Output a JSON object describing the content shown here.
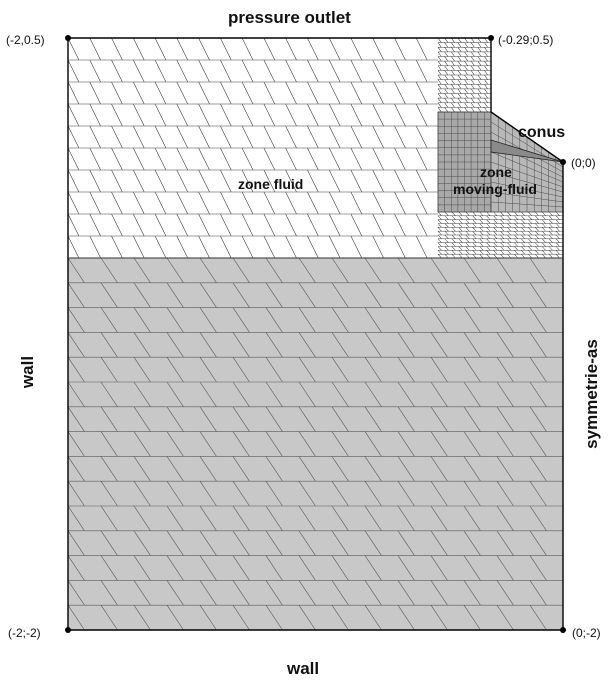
{
  "boundaries": {
    "top": "pressure outlet",
    "bottom": "wall",
    "left": "wall",
    "right": "symmetrie-as"
  },
  "zones": {
    "fluid": "zone fluid",
    "moving_fluid_line1": "zone",
    "moving_fluid_line2": "moving-fluid",
    "conus": "conus"
  },
  "corners": {
    "top_left": "(-2,0.5)",
    "top_right": "(-0.29;0.5)",
    "cone_tip": "(0;0)",
    "bottom_left": "(-2;-2)",
    "bottom_right": "(0;-2)"
  },
  "colors": {
    "upper_fill": "#ffffff",
    "lower_fill": "#c8c8c8",
    "moving_zone_fill": "#a9a9a9",
    "conus_fill": "#8a8a8a",
    "mesh_line": "#3c3c3c",
    "outline": "#000000"
  }
}
